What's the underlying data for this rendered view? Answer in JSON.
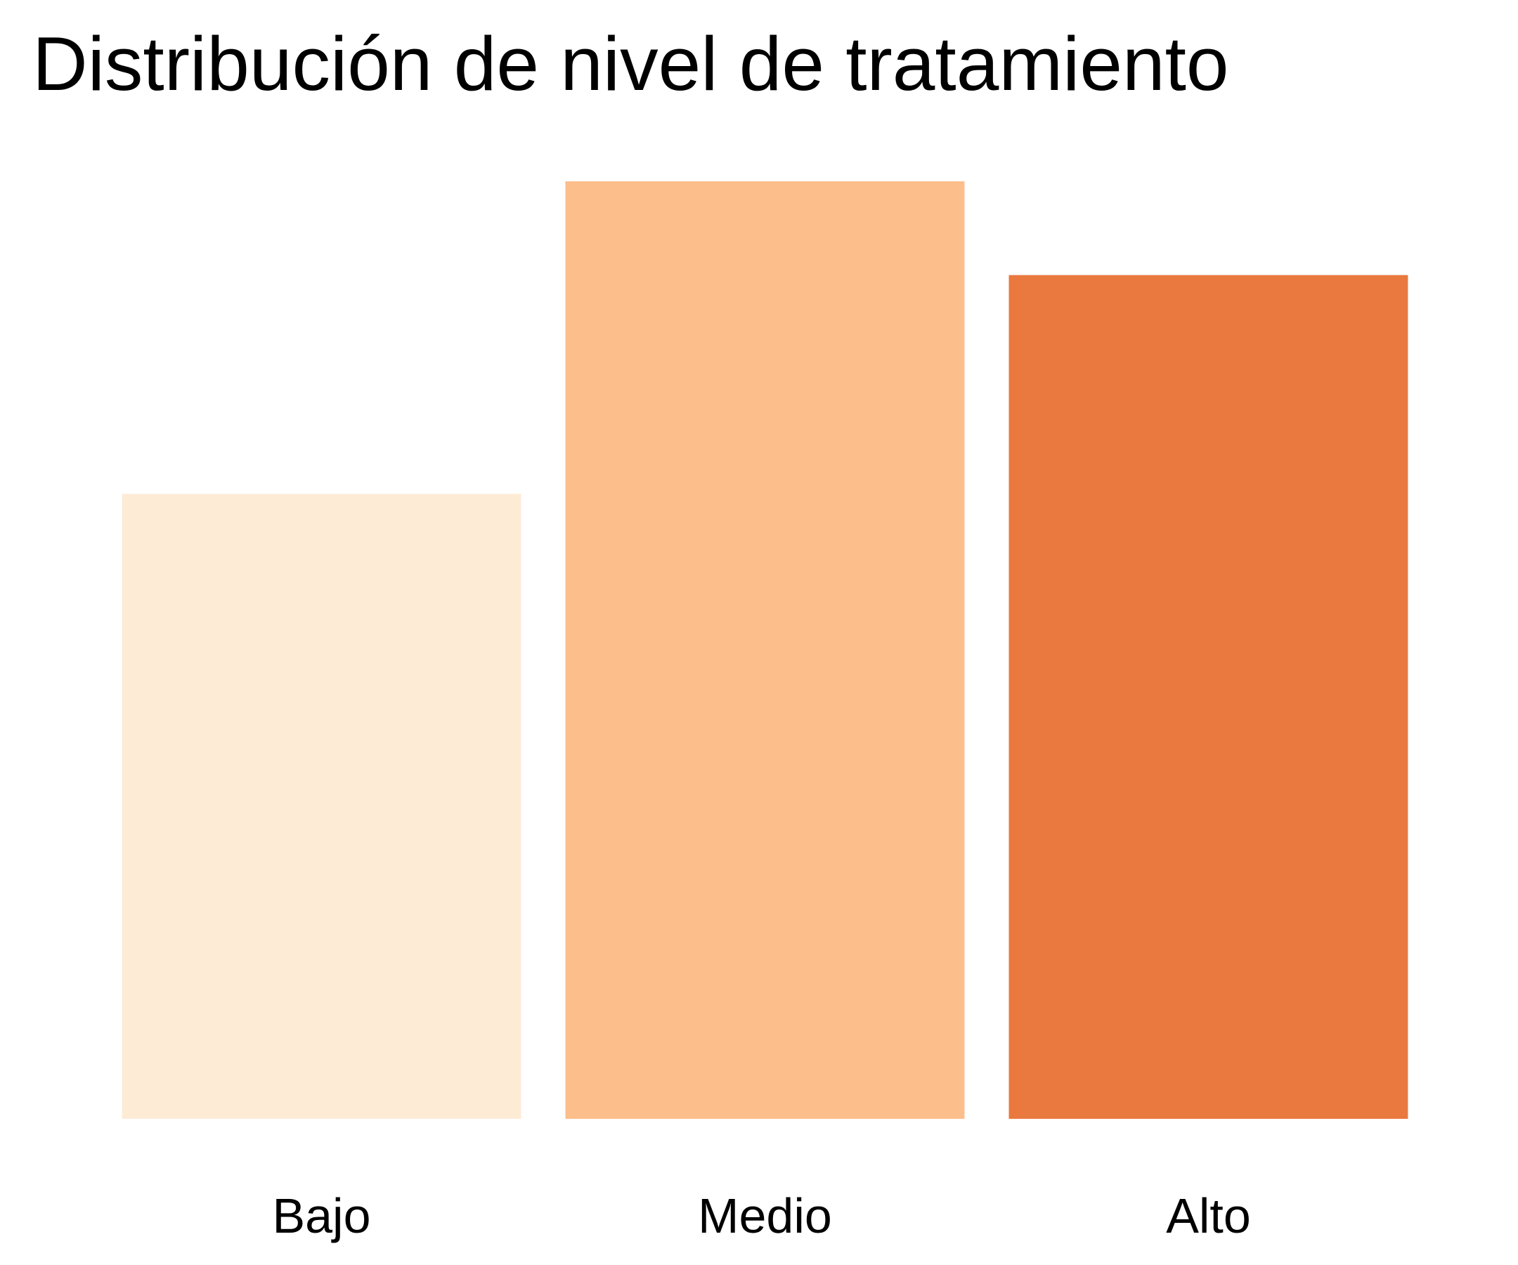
{
  "chart_data": {
    "type": "bar",
    "title": "Distribución de nivel de tratamiento",
    "xlabel": "",
    "ylabel": "",
    "categories": [
      "Bajo",
      "Medio",
      "Alto"
    ],
    "values": [
      40,
      60,
      54
    ],
    "colors": [
      "#FDEBD6",
      "#FCBE8B",
      "#E9793F"
    ],
    "ylim": [
      0,
      60
    ],
    "grid": false,
    "legend": "none"
  }
}
